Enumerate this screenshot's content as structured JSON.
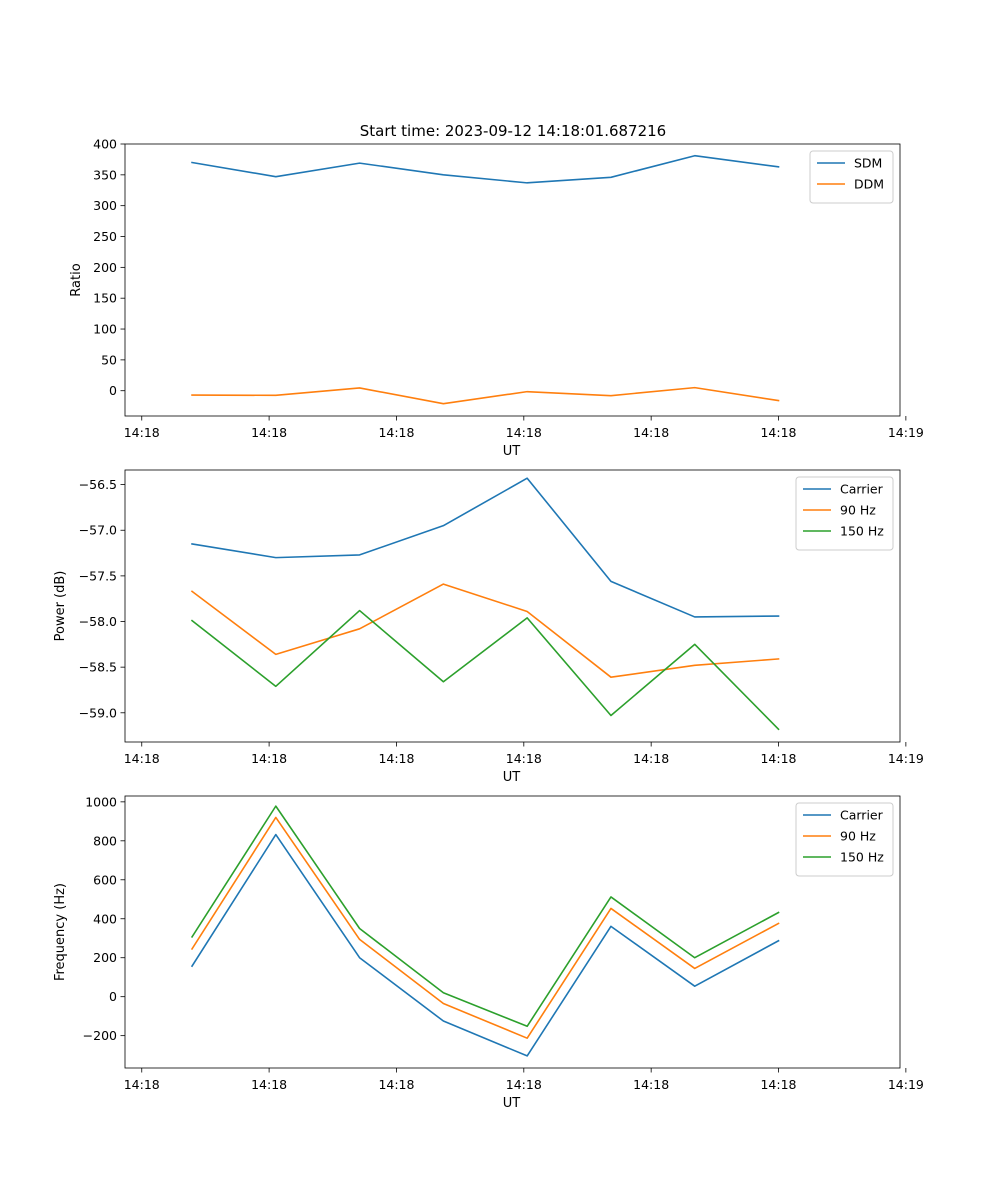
{
  "figure": {
    "title": "Start time: 2023-09-12 14:18:01.687216"
  },
  "chart_data": [
    {
      "type": "line",
      "title": "Start time: 2023-09-12 14:18:01.687216",
      "xlabel": "UT",
      "ylabel": "Ratio",
      "x": [
        1,
        2,
        3,
        4,
        5,
        6,
        7,
        8
      ],
      "xlim": [
        0.2,
        9.45
      ],
      "xticks": [
        0.4,
        1.92,
        3.44,
        4.96,
        6.48,
        8.0,
        9.52
      ],
      "xtick_labels": [
        "14:18",
        "14:18",
        "14:18",
        "14:18",
        "14:18",
        "14:18",
        "14:19"
      ],
      "ylim": [
        -41,
        400
      ],
      "yticks": [
        0,
        50,
        100,
        150,
        200,
        250,
        300,
        350,
        400
      ],
      "ytick_labels": [
        "0",
        "50",
        "100",
        "150",
        "200",
        "250",
        "300",
        "350",
        "400"
      ],
      "legend_position": "top-right",
      "series": [
        {
          "name": "SDM",
          "color": "#1f77b4",
          "values": [
            370,
            347,
            369,
            350,
            337,
            346,
            381,
            363
          ]
        },
        {
          "name": "DDM",
          "color": "#ff7f0e",
          "values": [
            -7,
            -7.5,
            4.5,
            -21,
            -1.5,
            -8,
            5,
            -16
          ]
        }
      ]
    },
    {
      "type": "line",
      "xlabel": "UT",
      "ylabel": "Power (dB)",
      "x": [
        1,
        2,
        3,
        4,
        5,
        6,
        7,
        8
      ],
      "xlim": [
        0.2,
        9.45
      ],
      "xticks": [
        0.4,
        1.92,
        3.44,
        4.96,
        6.48,
        8.0,
        9.52
      ],
      "xtick_labels": [
        "14:18",
        "14:18",
        "14:18",
        "14:18",
        "14:18",
        "14:18",
        "14:19"
      ],
      "ylim": [
        -59.32,
        -56.34
      ],
      "yticks": [
        -56.5,
        -57.0,
        -57.5,
        -58.0,
        -58.5,
        -59.0
      ],
      "ytick_labels": [
        "−56.5",
        "−57.0",
        "−57.5",
        "−58.0",
        "−58.5",
        "−59.0"
      ],
      "legend_position": "top-right",
      "series": [
        {
          "name": "Carrier",
          "color": "#1f77b4",
          "values": [
            -57.15,
            -57.3,
            -57.27,
            -56.95,
            -56.43,
            -57.56,
            -57.95,
            -57.94
          ]
        },
        {
          "name": "90 Hz",
          "color": "#ff7f0e",
          "values": [
            -57.67,
            -58.36,
            -58.08,
            -57.59,
            -57.89,
            -58.61,
            -58.48,
            -58.41
          ]
        },
        {
          "name": "150 Hz",
          "color": "#2ca02c",
          "values": [
            -57.99,
            -58.71,
            -57.88,
            -58.66,
            -57.96,
            -59.03,
            -58.25,
            -59.18
          ]
        }
      ]
    },
    {
      "type": "line",
      "xlabel": "UT",
      "ylabel": "Frequency (Hz)",
      "x": [
        1,
        2,
        3,
        4,
        5,
        6,
        7,
        8
      ],
      "xlim": [
        0.2,
        9.45
      ],
      "xticks": [
        0.4,
        1.92,
        3.44,
        4.96,
        6.48,
        8.0,
        9.52
      ],
      "xtick_labels": [
        "14:18",
        "14:18",
        "14:18",
        "14:18",
        "14:18",
        "14:18",
        "14:19"
      ],
      "ylim": [
        -366,
        1030
      ],
      "yticks": [
        -200,
        0,
        200,
        400,
        600,
        800,
        1000
      ],
      "ytick_labels": [
        "−200",
        "0",
        "200",
        "400",
        "600",
        "800",
        "1000"
      ],
      "legend_position": "top-right",
      "series": [
        {
          "name": "Carrier",
          "color": "#1f77b4",
          "values": [
            157,
            832,
            200,
            -125,
            -304,
            361,
            54,
            287
          ]
        },
        {
          "name": "90 Hz",
          "color": "#ff7f0e",
          "values": [
            245,
            920,
            294,
            -35,
            -213,
            453,
            145,
            376
          ]
        },
        {
          "name": "150 Hz",
          "color": "#2ca02c",
          "values": [
            307,
            978,
            350,
            20,
            -152,
            512,
            200,
            432
          ]
        }
      ]
    }
  ]
}
